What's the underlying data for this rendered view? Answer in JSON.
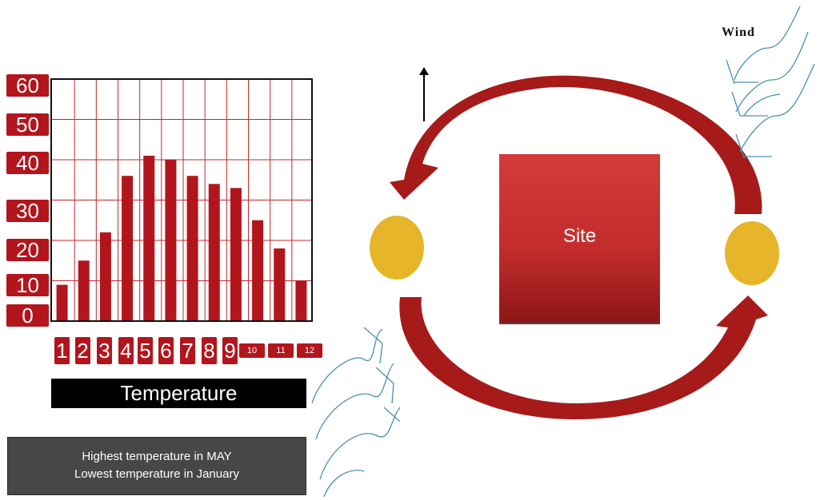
{
  "chart_data": {
    "type": "bar",
    "title": "Temperature",
    "categories": [
      "1",
      "2",
      "3",
      "4",
      "5",
      "6",
      "7",
      "8",
      "9",
      "10",
      "11",
      "12"
    ],
    "values": [
      9,
      15,
      22,
      36,
      41,
      40,
      36,
      34,
      33,
      25,
      18,
      10
    ],
    "ylim": [
      0,
      60
    ],
    "yticks": [
      "0",
      "10",
      "20",
      "30",
      "40",
      "50",
      "60"
    ],
    "bar_color": "#b3151c",
    "grid": true
  },
  "notes": {
    "line1": "Highest temperature in MAY",
    "line2": "Lowest temperature in January"
  },
  "diagram": {
    "site_label": "Site",
    "wind_label": "Wind",
    "arrow_color": "#a61a1a",
    "sun_color": "#e6b52a",
    "wind_line_color": "#4a8fb8"
  }
}
